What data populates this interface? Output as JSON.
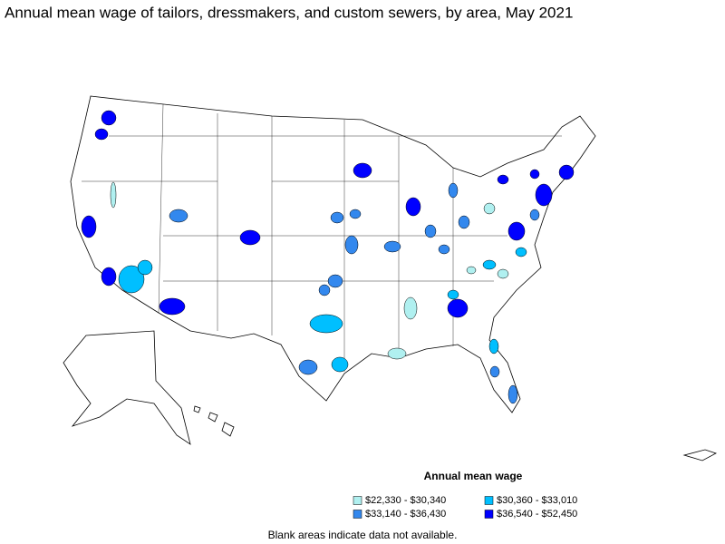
{
  "title": "Annual mean wage of tailors, dressmakers, and custom sewers, by area, May 2021",
  "legend": {
    "title": "Annual mean wage",
    "items": [
      {
        "label": "$22,330 - $30,340",
        "color": "#b0f0f0"
      },
      {
        "label": "$30,360 - $33,010",
        "color": "#00bfff"
      },
      {
        "label": "$33,140 - $36,430",
        "color": "#3388ee"
      },
      {
        "label": "$36,540 - $52,450",
        "color": "#0000ff"
      }
    ]
  },
  "footnote": "Blank areas indicate data not available."
}
